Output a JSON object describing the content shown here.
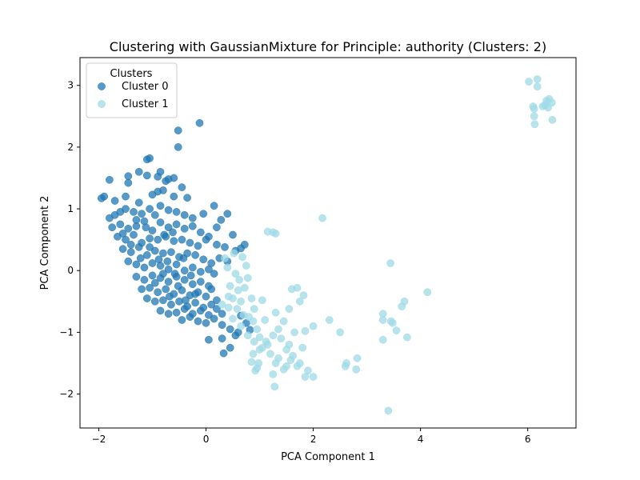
{
  "chart_data": {
    "type": "scatter",
    "title": "Clustering with GaussianMixture for Principle: authority (Clusters: 2)",
    "xlabel": "PCA Component 1",
    "ylabel": "PCA Component 2",
    "xlim": [
      -2.35,
      6.9
    ],
    "ylim": [
      -2.55,
      3.45
    ],
    "xticks": [
      -2,
      0,
      2,
      4,
      6
    ],
    "yticks": [
      -2,
      -1,
      0,
      1,
      2,
      3
    ],
    "xtick_labels": [
      "−2",
      "0",
      "2",
      "4",
      "6"
    ],
    "ytick_labels": [
      "−2",
      "−1",
      "0",
      "1",
      "2",
      "3"
    ],
    "grid": false,
    "legend": {
      "title": "Clusters",
      "placement": "top-left"
    },
    "series": [
      {
        "name": "Cluster 0",
        "color": "#1f77b4",
        "points": [
          [
            -0.12,
            2.39
          ],
          [
            -0.52,
            2.27
          ],
          [
            -0.52,
            2.0
          ],
          [
            -1.1,
            1.8
          ],
          [
            -1.05,
            1.82
          ],
          [
            -1.8,
            1.47
          ],
          [
            -1.45,
            1.53
          ],
          [
            -1.1,
            1.54
          ],
          [
            -0.6,
            1.5
          ],
          [
            -0.85,
            1.6
          ],
          [
            -0.75,
            1.45
          ],
          [
            -1.25,
            1.6
          ],
          [
            -0.35,
            1.18
          ],
          [
            -0.45,
            1.35
          ],
          [
            -1.95,
            1.17
          ],
          [
            -1.9,
            1.2
          ],
          [
            -1.7,
            1.13
          ],
          [
            -1.5,
            1.2
          ],
          [
            -1.25,
            1.1
          ],
          [
            -1.0,
            1.23
          ],
          [
            -0.9,
            1.28
          ],
          [
            -0.8,
            1.3
          ],
          [
            -0.6,
            1.2
          ],
          [
            -1.45,
            1.42
          ],
          [
            -0.9,
            1.52
          ],
          [
            -0.7,
            1.48
          ],
          [
            -1.8,
            0.85
          ],
          [
            -1.7,
            0.9
          ],
          [
            -1.6,
            0.95
          ],
          [
            -1.5,
            1.0
          ],
          [
            -1.35,
            0.95
          ],
          [
            -1.2,
            0.92
          ],
          [
            -1.05,
            1.0
          ],
          [
            -0.85,
            1.05
          ],
          [
            -0.7,
            0.98
          ],
          [
            -0.55,
            0.95
          ],
          [
            -0.4,
            0.9
          ],
          [
            -0.25,
            0.85
          ],
          [
            -0.05,
            0.92
          ],
          [
            0.15,
            1.05
          ],
          [
            0.28,
            0.82
          ],
          [
            0.4,
            0.92
          ],
          [
            -1.75,
            0.7
          ],
          [
            -1.6,
            0.75
          ],
          [
            -1.45,
            0.68
          ],
          [
            -1.3,
            0.72
          ],
          [
            -1.15,
            0.8
          ],
          [
            -1.0,
            0.65
          ],
          [
            -0.85,
            0.78
          ],
          [
            -0.7,
            0.7
          ],
          [
            -0.55,
            0.75
          ],
          [
            -0.4,
            0.68
          ],
          [
            -0.25,
            0.72
          ],
          [
            -0.1,
            0.62
          ],
          [
            0.05,
            0.55
          ],
          [
            0.2,
            0.7
          ],
          [
            -1.65,
            0.55
          ],
          [
            -1.5,
            0.5
          ],
          [
            -1.35,
            0.58
          ],
          [
            -1.2,
            0.45
          ],
          [
            -1.05,
            0.52
          ],
          [
            -0.9,
            0.5
          ],
          [
            -0.75,
            0.55
          ],
          [
            -0.6,
            0.48
          ],
          [
            -0.45,
            0.5
          ],
          [
            -0.3,
            0.45
          ],
          [
            -0.15,
            0.4
          ],
          [
            0.0,
            0.5
          ],
          [
            0.2,
            0.42
          ],
          [
            0.35,
            0.38
          ],
          [
            0.5,
            0.58
          ],
          [
            0.55,
            0.32
          ],
          [
            0.65,
            0.36
          ],
          [
            0.72,
            0.42
          ],
          [
            -1.55,
            0.35
          ],
          [
            -1.4,
            0.3
          ],
          [
            -1.25,
            0.38
          ],
          [
            -1.1,
            0.25
          ],
          [
            -0.95,
            0.32
          ],
          [
            -0.8,
            0.28
          ],
          [
            -0.65,
            0.3
          ],
          [
            -0.5,
            0.22
          ],
          [
            -0.35,
            0.28
          ],
          [
            -0.2,
            0.25
          ],
          [
            -0.05,
            0.18
          ],
          [
            0.1,
            0.12
          ],
          [
            0.25,
            0.2
          ],
          [
            0.4,
            0.15
          ],
          [
            -1.45,
            0.15
          ],
          [
            -1.3,
            0.1
          ],
          [
            -1.15,
            0.05
          ],
          [
            -1.0,
            0.12
          ],
          [
            -0.85,
            0.08
          ],
          [
            -0.7,
            0.02
          ],
          [
            -0.55,
            0.1
          ],
          [
            -0.4,
            0.0
          ],
          [
            -0.25,
            0.05
          ],
          [
            -0.1,
            -0.02
          ],
          [
            0.05,
            0.02
          ],
          [
            0.15,
            -0.05
          ],
          [
            -1.3,
            -0.1
          ],
          [
            -1.15,
            -0.15
          ],
          [
            -1.0,
            -0.08
          ],
          [
            -0.85,
            -0.12
          ],
          [
            -0.7,
            -0.18
          ],
          [
            -0.55,
            -0.1
          ],
          [
            -0.4,
            -0.15
          ],
          [
            -0.25,
            -0.22
          ],
          [
            -0.1,
            -0.18
          ],
          [
            0.05,
            -0.25
          ],
          [
            -1.2,
            -0.3
          ],
          [
            -1.05,
            -0.28
          ],
          [
            -0.9,
            -0.35
          ],
          [
            -0.75,
            -0.3
          ],
          [
            -0.6,
            -0.38
          ],
          [
            -0.45,
            -0.32
          ],
          [
            -0.3,
            -0.4
          ],
          [
            -0.15,
            -0.35
          ],
          [
            0.0,
            -0.42
          ],
          [
            0.1,
            -0.3
          ],
          [
            -1.1,
            -0.45
          ],
          [
            -0.95,
            -0.5
          ],
          [
            -0.8,
            -0.48
          ],
          [
            -0.65,
            -0.55
          ],
          [
            -0.5,
            -0.5
          ],
          [
            -0.35,
            -0.58
          ],
          [
            -0.2,
            -0.52
          ],
          [
            -0.05,
            -0.6
          ],
          [
            0.1,
            -0.55
          ],
          [
            0.2,
            -0.48
          ],
          [
            -0.85,
            -0.65
          ],
          [
            -0.7,
            -0.7
          ],
          [
            -0.55,
            -0.68
          ],
          [
            -0.4,
            -0.62
          ],
          [
            -0.25,
            -0.7
          ],
          [
            -0.1,
            -0.65
          ],
          [
            0.05,
            -0.72
          ],
          [
            0.2,
            -0.62
          ],
          [
            0.3,
            -0.7
          ],
          [
            -0.45,
            -0.8
          ],
          [
            -0.3,
            -0.75
          ],
          [
            -0.15,
            -0.82
          ],
          [
            0.0,
            -0.85
          ],
          [
            0.15,
            -0.78
          ],
          [
            0.3,
            -0.88
          ],
          [
            0.45,
            -0.95
          ],
          [
            0.6,
            -1.0
          ],
          [
            0.75,
            -0.85
          ],
          [
            0.82,
            -0.96
          ],
          [
            0.05,
            -1.12
          ],
          [
            0.3,
            -1.1
          ],
          [
            0.45,
            -1.25
          ],
          [
            0.55,
            -1.05
          ],
          [
            0.33,
            -1.34
          ],
          [
            0.65,
            -0.73
          ],
          [
            -1.3,
            0.82
          ],
          [
            -1.12,
            0.7
          ],
          [
            -0.95,
            0.9
          ],
          [
            -0.78,
            0.58
          ],
          [
            -0.62,
            0.62
          ],
          [
            -1.55,
            0.6
          ],
          [
            -1.4,
            0.42
          ],
          [
            -1.22,
            0.2
          ],
          [
            -1.05,
            0.38
          ],
          [
            -0.88,
            0.18
          ],
          [
            -0.72,
            0.15
          ],
          [
            -0.58,
            -0.05
          ],
          [
            -0.42,
            0.2
          ],
          [
            -0.28,
            -0.08
          ],
          [
            -0.95,
            -0.2
          ],
          [
            -0.8,
            -0.05
          ],
          [
            -0.68,
            -0.42
          ],
          [
            -0.52,
            -0.25
          ],
          [
            -0.38,
            -0.48
          ],
          [
            -0.2,
            -0.38
          ]
        ]
      },
      {
        "name": "Cluster 1",
        "color": "#9edae5",
        "points": [
          [
            6.18,
            3.1
          ],
          [
            6.02,
            3.06
          ],
          [
            6.18,
            2.98
          ],
          [
            6.35,
            2.75
          ],
          [
            6.4,
            2.78
          ],
          [
            6.45,
            2.72
          ],
          [
            6.28,
            2.66
          ],
          [
            6.32,
            2.68
          ],
          [
            6.38,
            2.64
          ],
          [
            6.1,
            2.66
          ],
          [
            6.12,
            2.62
          ],
          [
            6.12,
            2.5
          ],
          [
            6.13,
            2.37
          ],
          [
            6.46,
            2.44
          ],
          [
            2.17,
            0.85
          ],
          [
            1.15,
            0.63
          ],
          [
            1.25,
            0.62
          ],
          [
            1.3,
            0.6
          ],
          [
            3.44,
            0.12
          ],
          [
            4.13,
            -0.35
          ],
          [
            0.35,
            0.2
          ],
          [
            0.52,
            0.28
          ],
          [
            0.68,
            0.22
          ],
          [
            0.75,
            0.08
          ],
          [
            0.4,
            0.05
          ],
          [
            0.55,
            -0.05
          ],
          [
            0.62,
            -0.15
          ],
          [
            0.78,
            -0.12
          ],
          [
            0.45,
            -0.25
          ],
          [
            0.6,
            -0.32
          ],
          [
            0.72,
            -0.28
          ],
          [
            0.85,
            -0.45
          ],
          [
            0.5,
            -0.45
          ],
          [
            0.65,
            -0.5
          ],
          [
            0.42,
            -0.6
          ],
          [
            0.58,
            -0.62
          ],
          [
            0.7,
            -0.72
          ],
          [
            0.8,
            -0.75
          ],
          [
            0.5,
            -0.78
          ],
          [
            0.88,
            -0.82
          ],
          [
            1.05,
            -0.48
          ],
          [
            1.3,
            -0.68
          ],
          [
            1.45,
            -0.82
          ],
          [
            1.55,
            -0.62
          ],
          [
            1.6,
            -0.3
          ],
          [
            1.7,
            -0.28
          ],
          [
            1.75,
            -0.5
          ],
          [
            1.82,
            -0.4
          ],
          [
            1.85,
            -0.98
          ],
          [
            2.0,
            -0.9
          ],
          [
            1.65,
            -1.0
          ],
          [
            1.35,
            -0.95
          ],
          [
            1.25,
            -1.05
          ],
          [
            1.15,
            -1.2
          ],
          [
            1.0,
            -1.08
          ],
          [
            0.9,
            -1.15
          ],
          [
            1.05,
            -1.25
          ],
          [
            1.2,
            -1.35
          ],
          [
            1.35,
            -1.42
          ],
          [
            1.5,
            -1.28
          ],
          [
            1.62,
            -1.38
          ],
          [
            1.75,
            -1.5
          ],
          [
            1.9,
            -1.62
          ],
          [
            2.0,
            -1.72
          ],
          [
            1.85,
            -1.72
          ],
          [
            1.5,
            -1.55
          ],
          [
            1.3,
            -1.5
          ],
          [
            1.25,
            -1.68
          ],
          [
            1.28,
            -1.88
          ],
          [
            0.98,
            -1.5
          ],
          [
            0.95,
            -1.58
          ],
          [
            0.85,
            -1.48
          ],
          [
            0.92,
            -1.62
          ],
          [
            0.88,
            -1.35
          ],
          [
            1.0,
            -1.28
          ],
          [
            1.4,
            -1.1
          ],
          [
            1.55,
            -1.2
          ],
          [
            1.8,
            -1.25
          ],
          [
            2.3,
            -0.8
          ],
          [
            2.5,
            -1.0
          ],
          [
            2.6,
            -1.55
          ],
          [
            2.62,
            -1.5
          ],
          [
            2.8,
            -1.6
          ],
          [
            2.82,
            -1.42
          ],
          [
            3.3,
            -0.7
          ],
          [
            3.3,
            -0.8
          ],
          [
            3.3,
            -1.12
          ],
          [
            3.45,
            -0.82
          ],
          [
            3.48,
            -0.85
          ],
          [
            3.55,
            -0.97
          ],
          [
            3.65,
            -0.58
          ],
          [
            3.7,
            -0.5
          ],
          [
            3.75,
            -1.08
          ],
          [
            3.4,
            -2.27
          ],
          [
            1.58,
            -1.45
          ],
          [
            1.45,
            -1.6
          ],
          [
            1.7,
            -1.55
          ],
          [
            1.12,
            -1.15
          ],
          [
            0.95,
            -0.95
          ],
          [
            1.1,
            -0.8
          ],
          [
            0.65,
            -0.9
          ],
          [
            0.78,
            -1.05
          ],
          [
            0.42,
            -0.42
          ],
          [
            0.3,
            -0.55
          ],
          [
            0.9,
            -0.62
          ]
        ]
      }
    ]
  }
}
